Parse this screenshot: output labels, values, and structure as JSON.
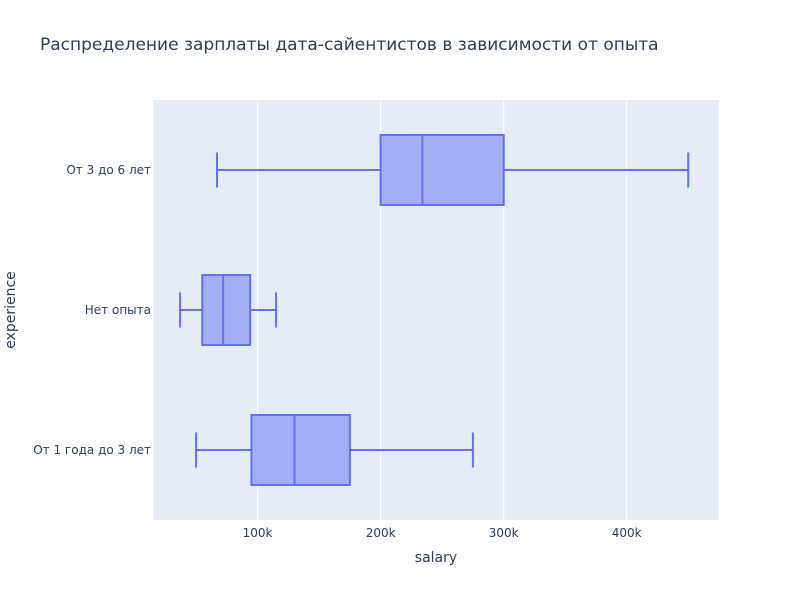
{
  "colors": {
    "plot_bg": "#e5ecf6",
    "grid": "#ffffff",
    "box_fill": "#a3aef7",
    "box_line": "#636efa",
    "text": "#2a3f5f"
  },
  "chart_data": {
    "type": "box",
    "orientation": "horizontal",
    "title": "Распределение зарплаты дата-сайентистов в зависимости от опыта",
    "xlabel": "salary",
    "ylabel": "experience",
    "xlim": [
      15000,
      475000
    ],
    "x_ticks": [
      {
        "value": 100000,
        "label": "100k"
      },
      {
        "value": 200000,
        "label": "200k"
      },
      {
        "value": 300000,
        "label": "300k"
      },
      {
        "value": 400000,
        "label": "400k"
      }
    ],
    "grid": true,
    "legend": false,
    "categories": [
      "От 3 до 6 лет",
      "Нет опыта",
      "От 1 года до 3 лет"
    ],
    "boxes": [
      {
        "category": "От 3 до 6 лет",
        "min": 67000,
        "q1": 200000,
        "median": 234000,
        "q3": 300000,
        "max": 450000
      },
      {
        "category": "Нет опыта",
        "min": 37000,
        "q1": 55000,
        "median": 72000,
        "q3": 94000,
        "max": 115000
      },
      {
        "category": "От 1 года до 3 лет",
        "min": 50000,
        "q1": 95000,
        "median": 130000,
        "q3": 175000,
        "max": 275000
      }
    ]
  }
}
